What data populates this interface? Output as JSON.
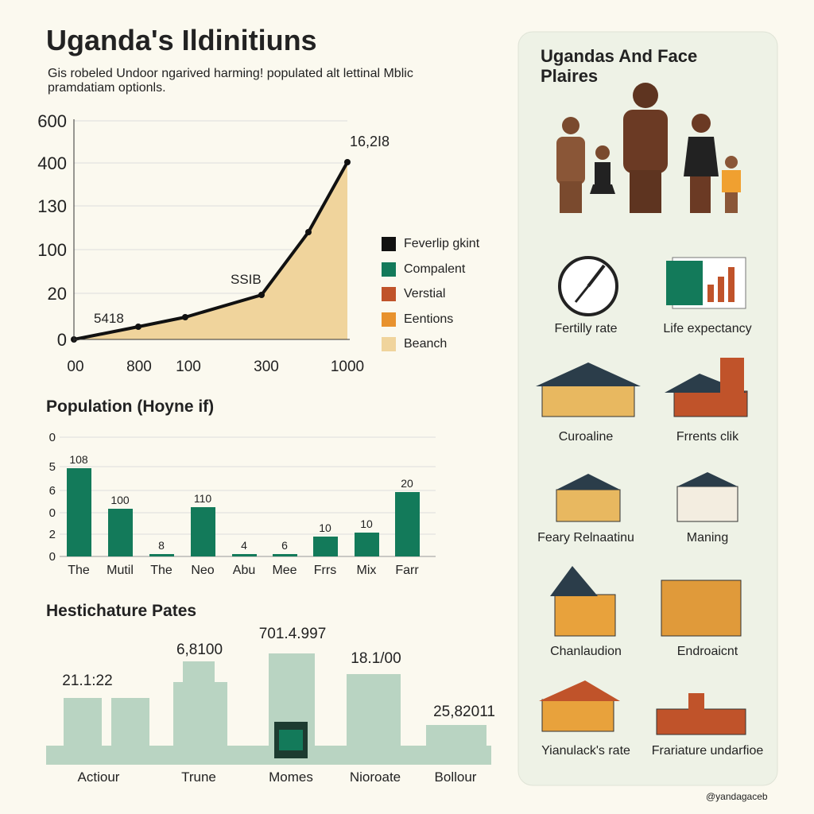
{
  "header": {
    "title": "Uganda's Ildinitiuns",
    "subtitle": "Gis robeled Undoor ngarived harming! populated alt lettinal Mblic pramdatiam optionls."
  },
  "line_chart": {
    "y_labels": [
      "600",
      "400",
      "130",
      "100",
      "20",
      "0"
    ],
    "x_labels": [
      "00",
      "800",
      "100",
      "300",
      "1000"
    ],
    "point_labels": [
      "5418",
      "SSIB",
      "16,2I8"
    ],
    "legend": [
      "Feverlip gkint",
      "Compalent",
      "Verstial",
      "Eentions",
      "Beanch"
    ]
  },
  "bar_chart": {
    "title": "Population (Hoyne if)",
    "y_labels": [
      "0",
      "5",
      "6",
      "0",
      "2",
      "0"
    ],
    "categories": [
      "The",
      "Mutil",
      "The",
      "Neo",
      "Abu",
      "Mee",
      "Frrs",
      "Mix",
      "Farr"
    ],
    "value_labels": [
      "108",
      "100",
      "8",
      "110",
      "4",
      "6",
      "10",
      "10",
      "20"
    ]
  },
  "buildings": {
    "title": "Hestichature Pates",
    "labels": [
      "Actiour",
      "Trune",
      "Momes",
      "Nioroate",
      "Bollour"
    ],
    "values": [
      "21.1:22",
      "6,8100",
      "701.4.997",
      "18.1/00",
      "25,82011"
    ]
  },
  "panel": {
    "title": "Ugandas And Face Plaires",
    "items": [
      "Fertilly rate",
      "Life expectancy",
      "Curoaline",
      "Frrents clik",
      "Feary Relnaatinu",
      "Maning",
      "Chanlaudion",
      "Endroaicnt",
      "Yianulack's rate",
      "Frariature undarfioe"
    ],
    "credit": "@yandagaceb"
  }
}
